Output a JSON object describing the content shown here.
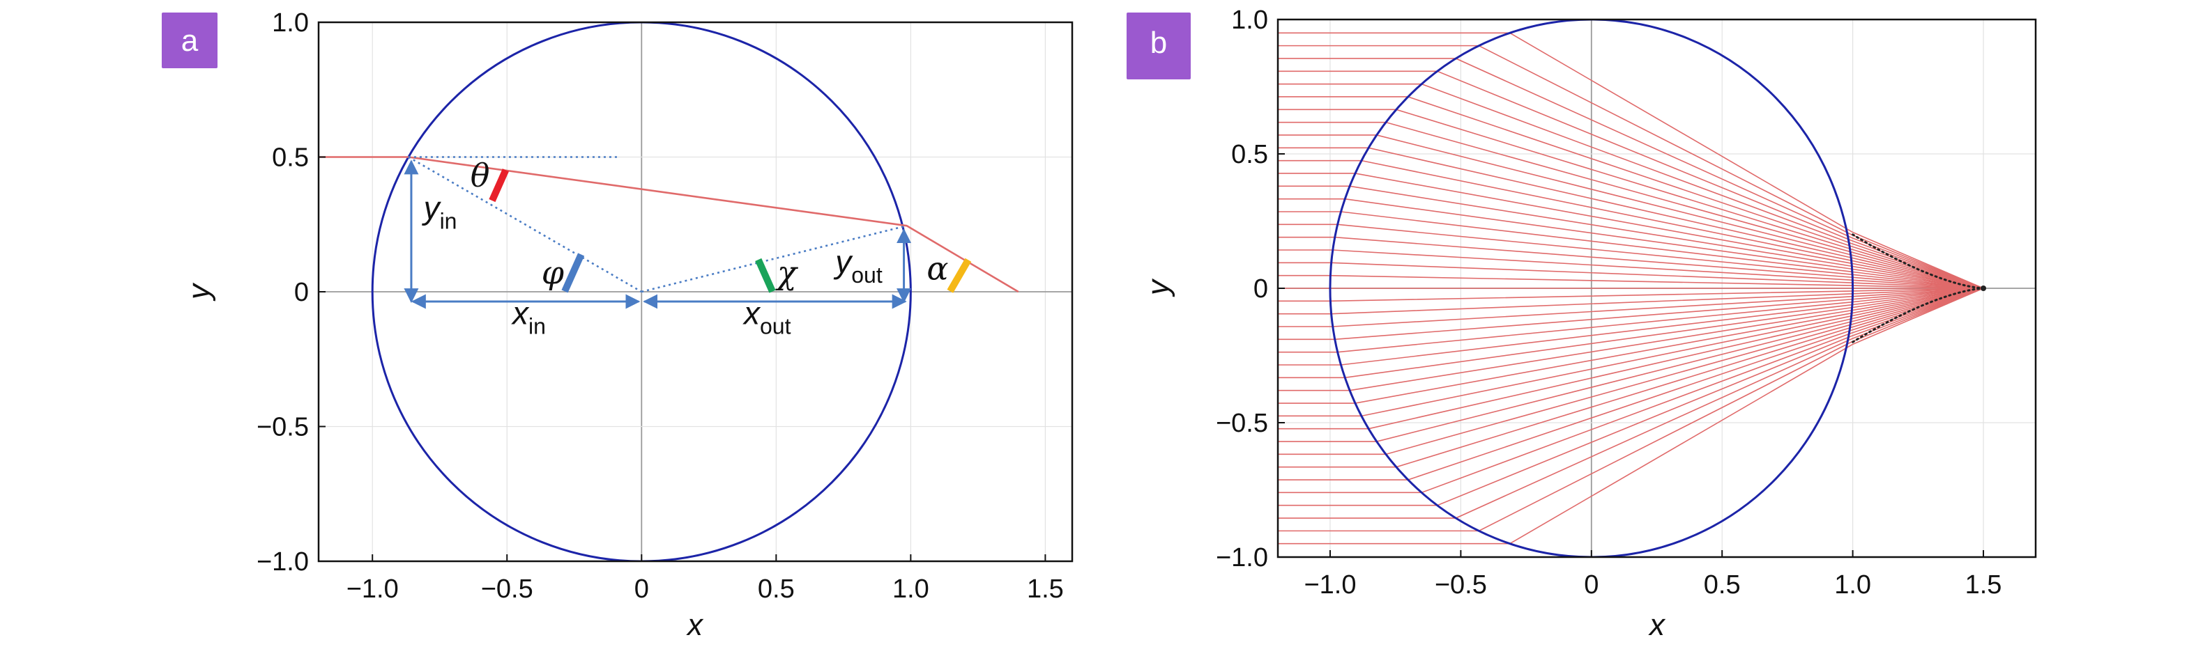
{
  "colors": {
    "circle": "#1c24a8",
    "ray": "#e06a6a",
    "construction": "#4a7cc4",
    "badge": "#9b59cf",
    "theta_mark": "#e8202a",
    "phi_mark": "#4a7cc4",
    "chi_mark": "#1aa35a",
    "alpha_mark": "#f5b816",
    "focus_dots": "#222222"
  },
  "panel_a": {
    "badge": "a",
    "xlabel": "x",
    "ylabel": "y",
    "xlim": [
      -1.2,
      1.6
    ],
    "ylim": [
      -1.0,
      1.0
    ],
    "xticks": [
      "−1.0",
      "−0.5",
      "0",
      "0.5",
      "1.0",
      "1.5"
    ],
    "xtick_values": [
      -1.0,
      -0.5,
      0,
      0.5,
      1.0,
      1.5
    ],
    "yticks": [
      "1.0",
      "0.5",
      "0",
      "−0.5",
      "−1.0"
    ],
    "ytick_values": [
      1.0,
      0.5,
      0,
      -0.5,
      -1.0
    ],
    "labels": {
      "theta": "θ",
      "phi": "φ",
      "chi": "χ",
      "alpha": "α",
      "y_in_main": "y",
      "y_in_sub": "in",
      "x_in_main": "x",
      "x_in_sub": "in",
      "y_out_main": "y",
      "y_out_sub": "out",
      "x_out_main": "x",
      "x_out_sub": "out"
    },
    "geometry": {
      "entry_point": [
        -0.866,
        0.5
      ],
      "exit_point": [
        0.985,
        0.245
      ],
      "ray_start_x": -1.2,
      "ray_end_x": 1.4
    }
  },
  "panel_b": {
    "badge": "b",
    "xlabel": "x",
    "ylabel": "y",
    "xlim": [
      -1.2,
      1.7
    ],
    "ylim": [
      -1.0,
      1.0
    ],
    "xticks": [
      "−1.0",
      "−0.5",
      "0",
      "0.5",
      "1.0",
      "1.5"
    ],
    "xtick_values": [
      -1.0,
      -0.5,
      0,
      0.5,
      1.0,
      1.5
    ],
    "yticks": [
      "1.0",
      "0.5",
      "0",
      "−0.5",
      "−1.0"
    ],
    "ytick_values": [
      1.0,
      0.5,
      0,
      -0.5,
      -1.0
    ],
    "ray_count": 41,
    "focus_x": 1.5,
    "ray_height_max": 0.95
  }
}
